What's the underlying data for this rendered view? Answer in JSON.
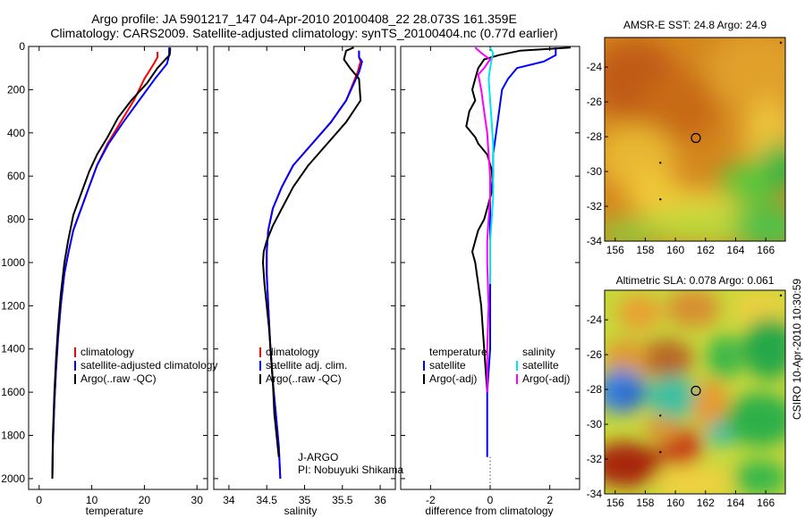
{
  "header": {
    "title_line1": "Argo profile: JA 5901217_147 04-Apr-2010 20100408_22 28.073S 161.359E",
    "title_line2": "Climatology: CARS2009. Satellite-adjusted climatology: synTS_20100404.nc (0.77d earlier)"
  },
  "side_text": "CSIRO 10-Apr-2010 10:30:59",
  "colors": {
    "climatology": "#ff0000",
    "satellite": "#0000ff",
    "argo": "#000000",
    "sat_sal": "#00e5ee",
    "argo_sal": "#ff00ff"
  },
  "chart_data": [
    {
      "type": "line",
      "xlabel": "temperature",
      "xlim": [
        -2,
        32
      ],
      "xticks": [
        "0",
        "10",
        "20",
        "30"
      ],
      "ylim": [
        2050,
        0
      ],
      "yticks": [
        "0",
        "200",
        "400",
        "600",
        "800",
        "1000",
        "1200",
        "1400",
        "1600",
        "1800",
        "2000"
      ],
      "legend": [
        "climatology",
        "satellite-adjusted climatology",
        "Argo(..raw -QC)"
      ],
      "series": [
        {
          "name": "climatology",
          "color": "#ff0000",
          "x": [
            22.5,
            22.5,
            21.8,
            20.0,
            18.0,
            15.5,
            13.0,
            11.0,
            9.5,
            8.0,
            6.5,
            5.6,
            4.8,
            4.1,
            3.6,
            3.2,
            2.9,
            2.6,
            2.5
          ],
          "y": [
            25,
            50,
            80,
            150,
            250,
            350,
            450,
            550,
            650,
            750,
            850,
            950,
            1050,
            1200,
            1350,
            1500,
            1650,
            1850,
            2000
          ]
        },
        {
          "name": "satellite-adjusted climatology",
          "color": "#0000ff",
          "x": [
            24.7,
            24.7,
            24.3,
            22.0,
            19.0,
            16.0,
            13.2,
            11.0,
            9.5,
            8.0,
            6.5,
            5.6,
            4.8,
            4.1,
            3.6,
            3.2,
            2.9,
            2.6,
            2.5
          ],
          "y": [
            5,
            40,
            80,
            150,
            250,
            350,
            450,
            550,
            650,
            750,
            850,
            950,
            1050,
            1200,
            1350,
            1500,
            1650,
            1850,
            2000
          ]
        },
        {
          "name": "Argo(..raw -QC)",
          "color": "#000000",
          "x": [
            24.9,
            24.9,
            24.8,
            24.0,
            22.5,
            20.5,
            17.5,
            15.0,
            13.0,
            11.0,
            9.5,
            8.0,
            6.5,
            5.5,
            4.8,
            4.1,
            3.6,
            3.2,
            2.9,
            2.6,
            2.5
          ],
          "y": [
            5,
            20,
            40,
            60,
            100,
            170,
            250,
            330,
            420,
            500,
            580,
            680,
            780,
            900,
            1000,
            1150,
            1300,
            1450,
            1600,
            1800,
            2000
          ]
        }
      ]
    },
    {
      "type": "line",
      "xlabel": "salinity",
      "xlim": [
        33.8,
        36.2
      ],
      "xticks": [
        "34",
        "34.5",
        "35",
        "35.5",
        "36"
      ],
      "ylim": [
        2050,
        0
      ],
      "legend": [
        "climatology",
        "satellite adj. clim.",
        "Argo(..raw -QC)"
      ],
      "annotation": [
        "J-ARGO",
        "PI: Nobuyuki Shikama"
      ],
      "series": [
        {
          "name": "climatology",
          "color": "#ff0000",
          "x": [
            35.72,
            35.72,
            35.74,
            35.7,
            35.55,
            35.35,
            35.1,
            34.85,
            34.7,
            34.58,
            34.52,
            34.5,
            34.5,
            34.52,
            34.55,
            34.58,
            34.62,
            34.66,
            34.68
          ],
          "y": [
            20,
            50,
            70,
            120,
            250,
            350,
            450,
            550,
            650,
            750,
            850,
            950,
            1050,
            1200,
            1400,
            1550,
            1700,
            1850,
            2000
          ]
        },
        {
          "name": "satellite adj. clim.",
          "color": "#0000ff",
          "x": [
            35.72,
            35.72,
            35.76,
            35.72,
            35.55,
            35.35,
            35.1,
            34.85,
            34.7,
            34.58,
            34.52,
            34.5,
            34.5,
            34.52,
            34.55,
            34.58,
            34.62,
            34.66,
            34.68
          ],
          "y": [
            20,
            50,
            70,
            120,
            250,
            350,
            450,
            550,
            650,
            750,
            850,
            950,
            1050,
            1200,
            1400,
            1550,
            1700,
            1850,
            2000
          ]
        },
        {
          "name": "Argo(..raw -QC)",
          "color": "#000000",
          "x": [
            35.65,
            35.55,
            35.52,
            35.6,
            35.72,
            35.74,
            35.55,
            35.3,
            35.05,
            34.85,
            34.7,
            34.58,
            34.5,
            34.46,
            34.45,
            34.47,
            34.5,
            34.53,
            34.56,
            34.58,
            34.6,
            34.63,
            34.66
          ],
          "y": [
            5,
            20,
            60,
            100,
            150,
            250,
            350,
            450,
            550,
            650,
            750,
            830,
            900,
            950,
            1000,
            1100,
            1200,
            1300,
            1450,
            1550,
            1700,
            1800,
            1900
          ]
        }
      ]
    },
    {
      "type": "line",
      "xlabel": "difference from climatology",
      "xlim": [
        -3,
        3
      ],
      "xticks": [
        "-2",
        "0",
        "2"
      ],
      "ylim": [
        2050,
        0
      ],
      "legend_left": [
        "temperature",
        "satellite",
        "Argo(-adj)"
      ],
      "legend_right": [
        "salinity",
        "satellite",
        "Argo(-adj)"
      ],
      "series": [
        {
          "name": "temperature satellite",
          "color": "#0000ff",
          "x": [
            2.2,
            2.2,
            1.8,
            0.9,
            0.6,
            0.4,
            0.3,
            0.2,
            0.1,
            0.1,
            0.0,
            0.0,
            0.0,
            0.0,
            0.0,
            -0.1,
            -0.1,
            -0.1,
            -0.1
          ],
          "y": [
            5,
            40,
            70,
            100,
            150,
            200,
            300,
            400,
            500,
            600,
            700,
            800,
            1000,
            1200,
            1400,
            1600,
            1800,
            1850,
            1900
          ]
        },
        {
          "name": "temperature Argo(-adj)",
          "color": "#000000",
          "x": [
            2.7,
            1.0,
            0.3,
            -0.2,
            -0.4,
            -0.5,
            -0.6,
            -0.5,
            -0.7,
            -0.8,
            -0.5,
            -0.4,
            -0.1,
            0.05,
            0.1,
            0.0,
            -0.1,
            -0.2,
            -0.4,
            -0.5,
            -0.6,
            -0.5,
            -0.4,
            -0.3,
            -0.2,
            -0.1
          ],
          "y": [
            5,
            20,
            40,
            60,
            100,
            150,
            200,
            250,
            300,
            370,
            420,
            450,
            500,
            570,
            650,
            700,
            750,
            800,
            850,
            900,
            950,
            1000,
            1100,
            1200,
            1400,
            1600
          ]
        },
        {
          "name": "salinity satellite",
          "color": "#00e5ee",
          "x": [
            0.0,
            0.1,
            0.05,
            0.0,
            -0.05,
            0.0,
            0.05,
            0.1,
            0.1,
            0.1,
            0.05,
            0.0,
            0.0,
            0.0
          ],
          "y": [
            5,
            30,
            60,
            100,
            150,
            250,
            350,
            450,
            600,
            700,
            800,
            900,
            1000,
            1100
          ]
        },
        {
          "name": "salinity Argo(-adj)",
          "color": "#ff00ff",
          "x": [
            -0.5,
            -0.3,
            0.0,
            -0.2,
            -0.4,
            -0.3,
            -0.2,
            -0.1,
            -0.05,
            0.0,
            0.0,
            -0.05,
            -0.1,
            -0.1,
            -0.05,
            -0.1,
            -0.1
          ],
          "y": [
            5,
            30,
            60,
            100,
            130,
            200,
            300,
            400,
            500,
            600,
            700,
            800,
            900,
            1000,
            1200,
            1400,
            1600
          ]
        }
      ]
    },
    {
      "type": "heatmap",
      "title": "AMSR-E SST: 24.8 Argo: 24.9",
      "xlim": [
        155.3,
        167.3
      ],
      "ylim": [
        -34,
        -22.3
      ],
      "xticks": [
        "156",
        "158",
        "160",
        "162",
        "164",
        "166"
      ],
      "yticks": [
        "-24",
        "-26",
        "-28",
        "-30",
        "-32",
        "-34"
      ],
      "marker": {
        "lon": 161.359,
        "lat": -28.073
      }
    },
    {
      "type": "heatmap",
      "title": "Altimetric SLA: 0.078 Argo: 0.061",
      "xlim": [
        155.3,
        167.3
      ],
      "ylim": [
        -34,
        -22.3
      ],
      "xticks": [
        "156",
        "158",
        "160",
        "162",
        "164",
        "166"
      ],
      "yticks": [
        "-24",
        "-26",
        "-28",
        "-30",
        "-32",
        "-34"
      ],
      "marker": {
        "lon": 161.359,
        "lat": -28.073
      }
    }
  ]
}
